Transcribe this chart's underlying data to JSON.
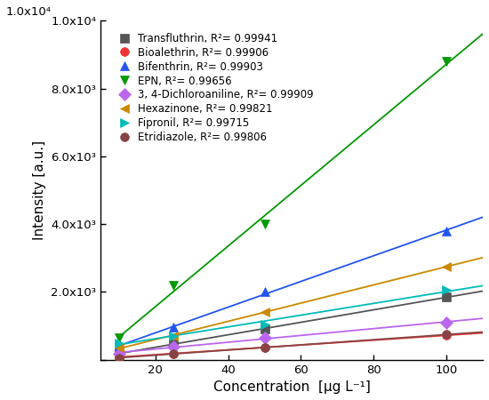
{
  "series": [
    {
      "name": "Transfluthrin, R²= 0.99941",
      "color": "#555555",
      "marker": "s",
      "x": [
        10,
        25,
        50,
        100
      ],
      "y": [
        200,
        450,
        900,
        1850
      ]
    },
    {
      "name": "Bioalethrin, R²= 0.99906",
      "color": "#ee3333",
      "marker": "o",
      "x": [
        10,
        25,
        50,
        100
      ],
      "y": [
        80,
        180,
        360,
        720
      ]
    },
    {
      "name": "Bifenthrin, R²= 0.99903",
      "color": "#2255ee",
      "marker": "^",
      "x": [
        10,
        25,
        50,
        100
      ],
      "y": [
        400,
        950,
        2000,
        3800
      ]
    },
    {
      "name": "EPN, R²= 0.99656",
      "color": "#009900",
      "marker": "v",
      "x": [
        10,
        25,
        50,
        100
      ],
      "y": [
        650,
        2200,
        4000,
        8800
      ]
    },
    {
      "name": "3, 4-Dichloroaniline, R²= 0.99909",
      "color": "#bb66ee",
      "marker": "D",
      "x": [
        10,
        25,
        50,
        100
      ],
      "y": [
        180,
        380,
        650,
        1100
      ]
    },
    {
      "name": "Hexazinone, R²= 0.99821",
      "color": "#cc8800",
      "marker": "<",
      "x": [
        10,
        25,
        50,
        100
      ],
      "y": [
        350,
        700,
        1400,
        2750
      ]
    },
    {
      "name": "Fipronil, R²= 0.99715",
      "color": "#00bbbb",
      "marker": ">",
      "x": [
        10,
        25,
        50,
        100
      ],
      "y": [
        500,
        700,
        1050,
        2050
      ]
    },
    {
      "name": "Etridiazole, R²= 0.99806",
      "color": "#884444",
      "marker": "o",
      "x": [
        10,
        25,
        50,
        100
      ],
      "y": [
        50,
        180,
        360,
        740
      ]
    }
  ],
  "xlabel": "Concentration  [μg L⁻¹]",
  "ylabel": "Intensity [a.u.]",
  "xlim": [
    5,
    110
  ],
  "ylim": [
    0,
    10000
  ],
  "xticks": [
    20,
    40,
    60,
    80,
    100
  ],
  "ytick_vals": [
    0,
    2000,
    4000,
    6000,
    8000,
    10000
  ],
  "ytick_labels": [
    "",
    "2.0x10³",
    "4.0x10³",
    "6.0x10³",
    "8.0x10³",
    "1.0x10⁴"
  ],
  "background_color": "#ffffff",
  "legend_fontsize": 8.5,
  "axis_fontsize": 11,
  "tick_fontsize": 9.5,
  "markersize": 7,
  "linewidth": 1.3
}
